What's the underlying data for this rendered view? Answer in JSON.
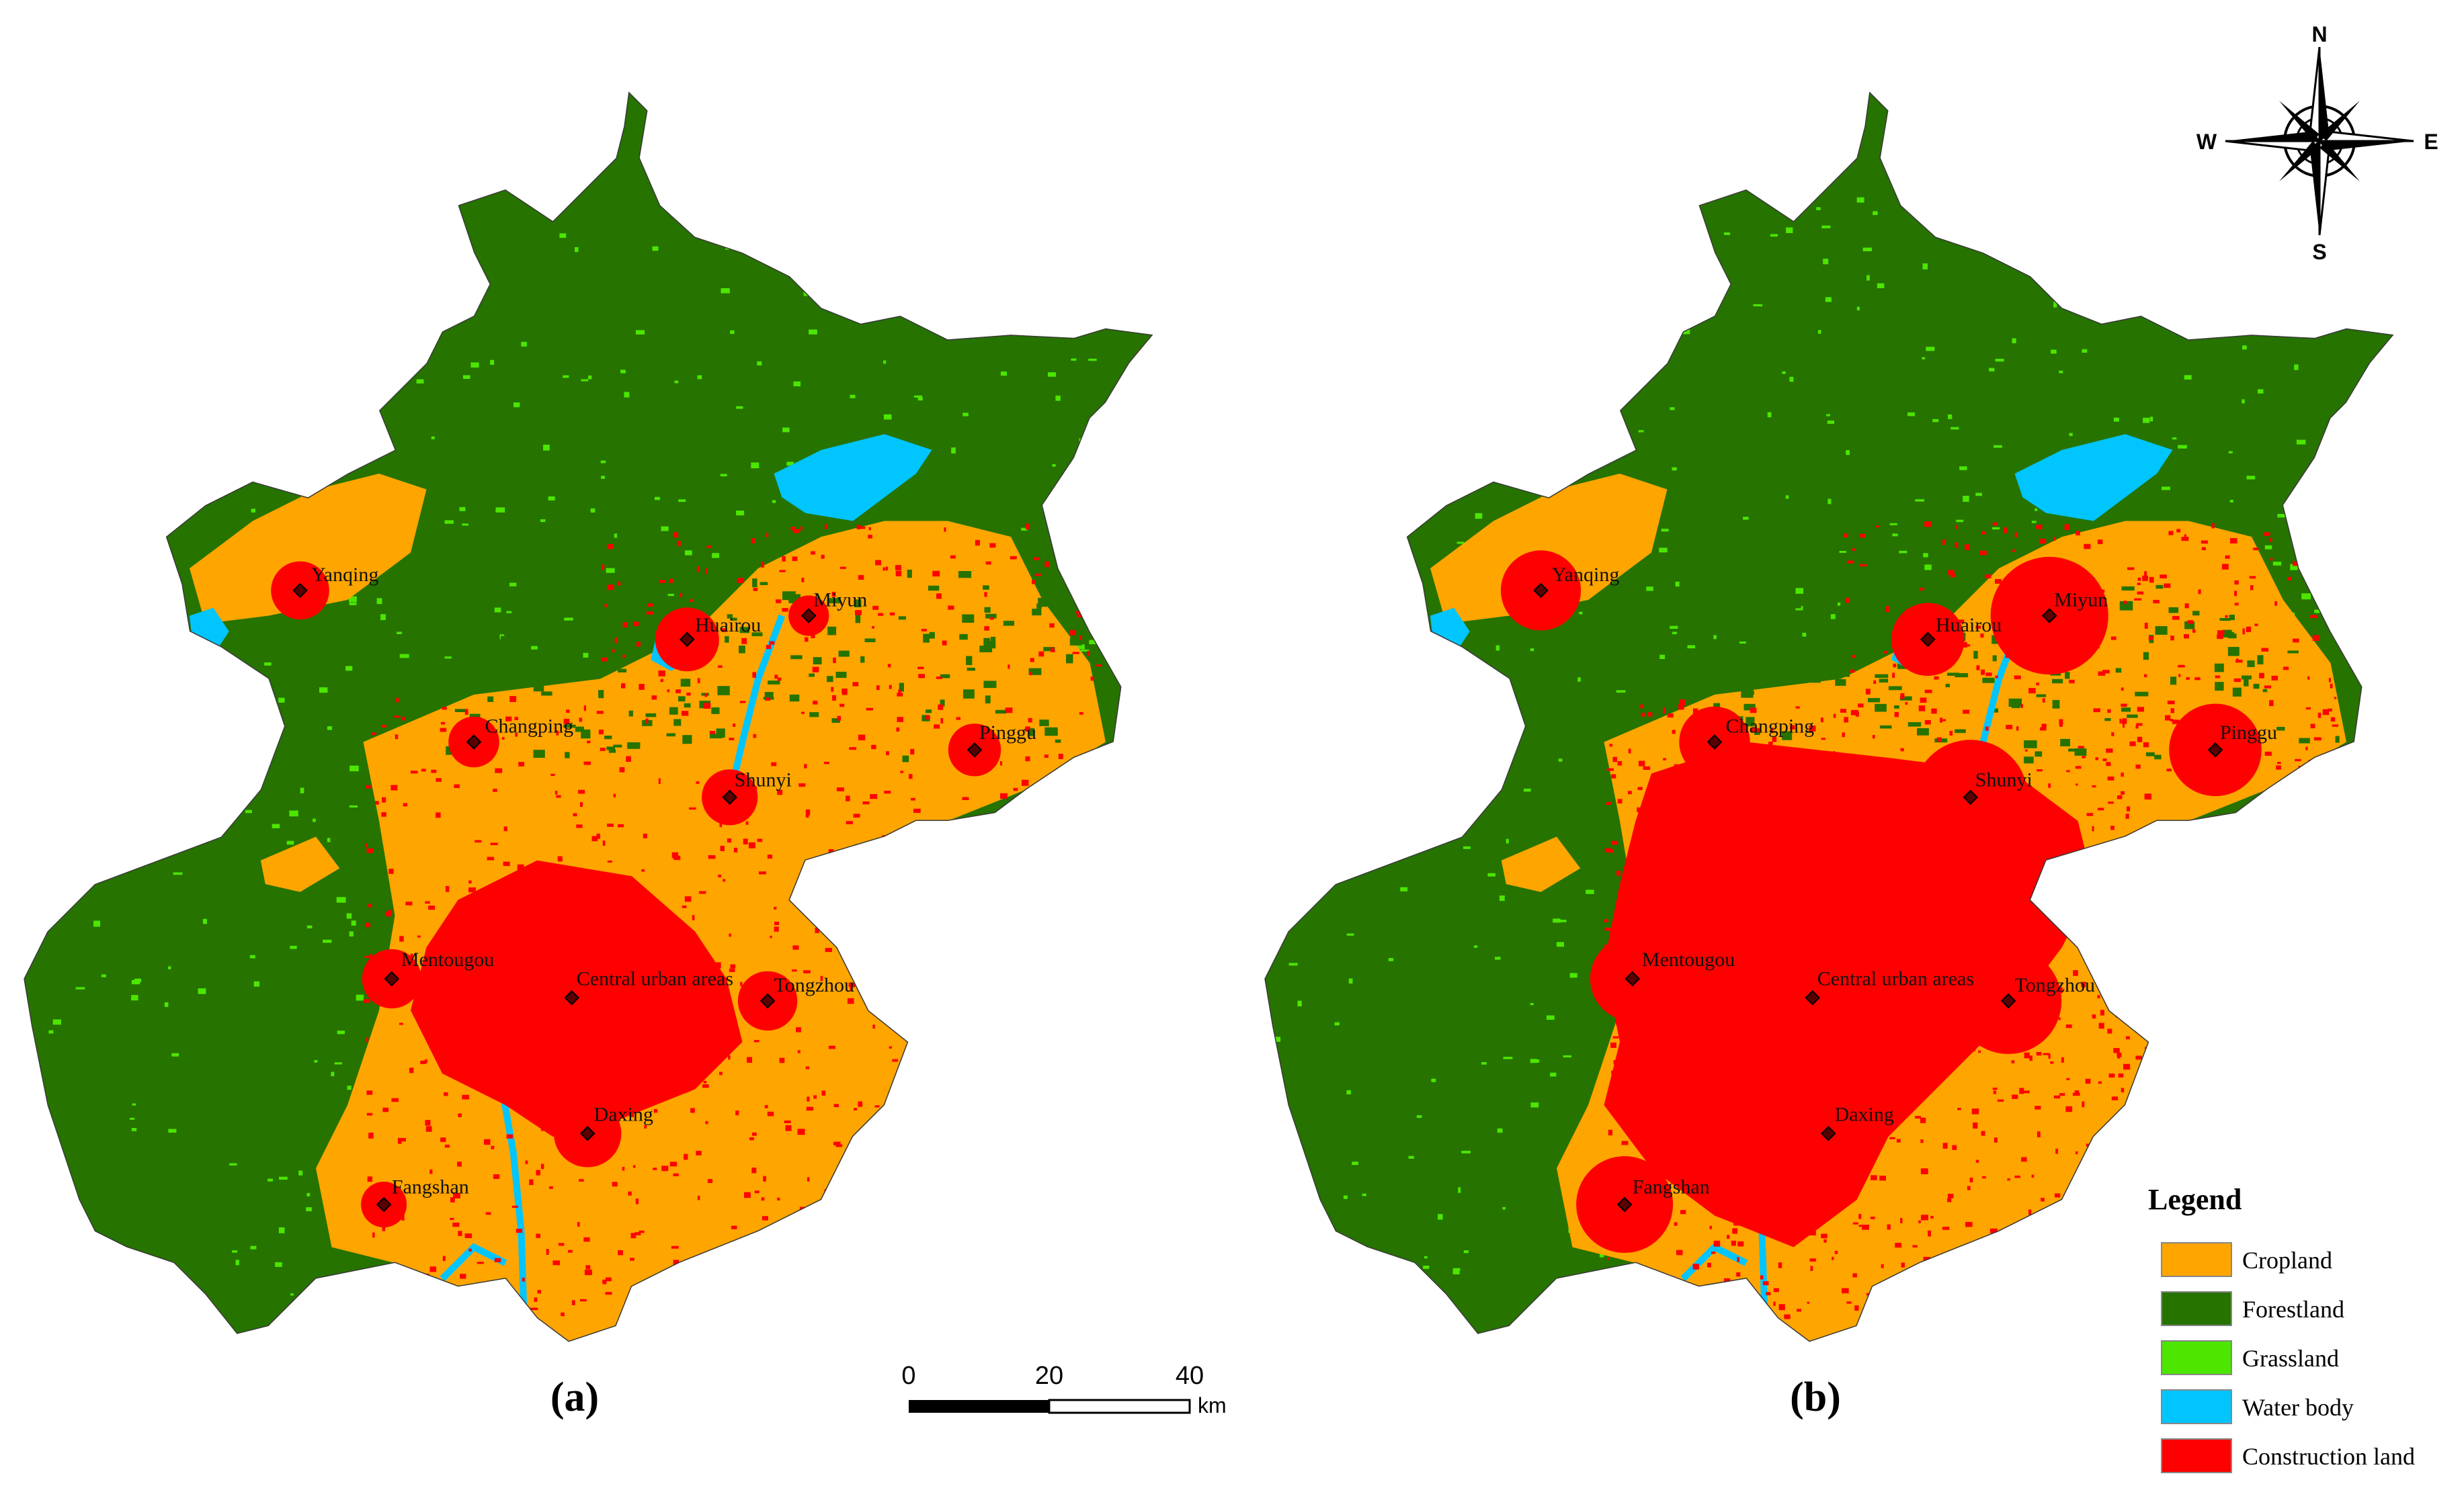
{
  "panels": [
    {
      "label": "(a)",
      "places": [
        "Yanqing",
        "Huairou",
        "Miyun",
        "Changping",
        "Pinggu",
        "Shunyi",
        "Mentougou",
        "Central urban areas",
        "Tongzhou",
        "Daxing",
        "Fangshan"
      ],
      "urban_extent": "moderate"
    },
    {
      "label": "(b)",
      "places": [
        "Yanqing",
        "Huairou",
        "Miyun",
        "Changping",
        "Pinggu",
        "Shunyi",
        "Mentougou",
        "Central urban areas",
        "Tongzhou",
        "Daxing",
        "Fangshan"
      ],
      "urban_extent": "expanded"
    }
  ],
  "scale_bar": {
    "ticks": [
      "0",
      "20",
      "40"
    ],
    "unit": "km"
  },
  "compass": {
    "n": "N",
    "s": "S",
    "e": "E",
    "w": "W"
  },
  "legend": {
    "title": "Legend",
    "items": [
      {
        "label": "Cropland",
        "color": "#FFA500"
      },
      {
        "label": "Forestland",
        "color": "#267300"
      },
      {
        "label": "Grassland",
        "color": "#4CE600"
      },
      {
        "label": "Water body",
        "color": "#00C5FF"
      },
      {
        "label": "Construction land",
        "color": "#FF0000"
      }
    ]
  }
}
